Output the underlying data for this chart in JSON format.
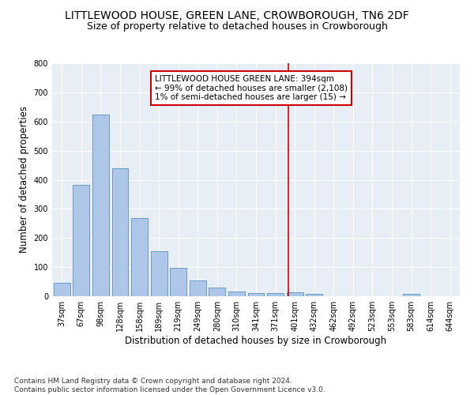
{
  "title": "LITTLEWOOD HOUSE, GREEN LANE, CROWBOROUGH, TN6 2DF",
  "subtitle": "Size of property relative to detached houses in Crowborough",
  "xlabel": "Distribution of detached houses by size in Crowborough",
  "ylabel": "Number of detached properties",
  "bar_labels": [
    "37sqm",
    "67sqm",
    "98sqm",
    "128sqm",
    "158sqm",
    "189sqm",
    "219sqm",
    "249sqm",
    "280sqm",
    "310sqm",
    "341sqm",
    "371sqm",
    "401sqm",
    "432sqm",
    "462sqm",
    "492sqm",
    "523sqm",
    "553sqm",
    "583sqm",
    "614sqm",
    "644sqm"
  ],
  "bar_values": [
    47,
    382,
    623,
    440,
    268,
    155,
    97,
    53,
    30,
    17,
    12,
    12,
    14,
    7,
    0,
    0,
    0,
    0,
    8,
    0,
    0
  ],
  "bar_color": "#aec6e8",
  "bar_edge_color": "#5a8fc0",
  "vline_x": 11.65,
  "vline_color": "#cc0000",
  "annotation_text": "LITTLEWOOD HOUSE GREEN LANE: 394sqm\n← 99% of detached houses are smaller (2,108)\n1% of semi-detached houses are larger (15) →",
  "annotation_box_color": "#cc0000",
  "ylim": [
    0,
    800
  ],
  "yticks": [
    0,
    100,
    200,
    300,
    400,
    500,
    600,
    700,
    800
  ],
  "background_color": "#e8eef5",
  "footer_text": "Contains HM Land Registry data © Crown copyright and database right 2024.\nContains public sector information licensed under the Open Government Licence v3.0.",
  "title_fontsize": 10,
  "subtitle_fontsize": 9,
  "xlabel_fontsize": 8.5,
  "ylabel_fontsize": 8.5,
  "tick_fontsize": 7,
  "annotation_fontsize": 7.5,
  "footer_fontsize": 6.5
}
